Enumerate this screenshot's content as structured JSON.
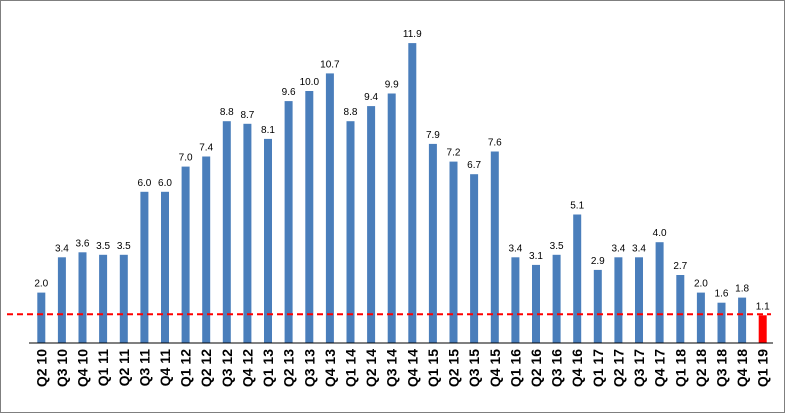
{
  "chart_data": {
    "type": "bar",
    "categories": [
      "Q2 10",
      "Q3 10",
      "Q4 10",
      "Q1 11",
      "Q2 11",
      "Q3 11",
      "Q4 11",
      "Q1 12",
      "Q2 12",
      "Q3 12",
      "Q4 12",
      "Q1 13",
      "Q2 13",
      "Q3 13",
      "Q4 13",
      "Q1 14",
      "Q2 14",
      "Q3 14",
      "Q4 14",
      "Q1 15",
      "Q2 15",
      "Q3 15",
      "Q4 15",
      "Q1 16",
      "Q2 16",
      "Q3 16",
      "Q4 16",
      "Q1 17",
      "Q2 17",
      "Q3 17",
      "Q4 17",
      "Q1 18",
      "Q2 18",
      "Q3 18",
      "Q4 18",
      "Q1 19"
    ],
    "values": [
      2.0,
      3.4,
      3.6,
      3.5,
      3.5,
      6.0,
      6.0,
      7.0,
      7.4,
      8.8,
      8.7,
      8.1,
      9.6,
      10.0,
      10.7,
      8.8,
      9.4,
      9.9,
      11.9,
      7.9,
      7.2,
      6.7,
      7.6,
      3.4,
      3.1,
      3.5,
      5.1,
      2.9,
      3.4,
      3.4,
      4.0,
      2.7,
      2.0,
      1.6,
      1.8,
      1.1
    ],
    "value_labels": [
      "2.0",
      "3.4",
      "3.6",
      "3.5",
      "3.5",
      "6.0",
      "6.0",
      "7.0",
      "7.4",
      "8.8",
      "8.7",
      "8.1",
      "9.6",
      "10.0",
      "10.7",
      "8.8",
      "9.4",
      "9.9",
      "11.9",
      "7.9",
      "7.2",
      "6.7",
      "7.6",
      "3.4",
      "3.1",
      "3.5",
      "5.1",
      "2.9",
      "3.4",
      "3.4",
      "4.0",
      "2.7",
      "2.0",
      "1.6",
      "1.8",
      "1.1"
    ],
    "title": "",
    "xlabel": "",
    "ylabel": "",
    "ylim": [
      0,
      12.5
    ],
    "reference_line": 1.1,
    "highlight_index": 35,
    "grid": false,
    "legend": "none"
  },
  "colors": {
    "bar": "#4a7ebb",
    "highlight_bar": "#ff0000",
    "reference_line": "#ff0000",
    "axis": "#000000"
  }
}
